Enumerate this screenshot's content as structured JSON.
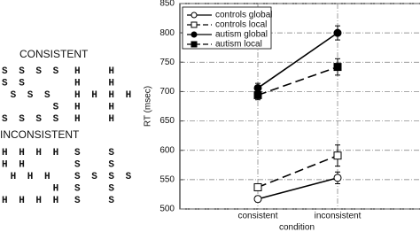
{
  "panels": [
    {
      "title": "CONSISTENT",
      "figures": [
        [
          "S S S S",
          "S S",
          " S S S",
          "      S",
          "S S S S"
        ],
        [
          "H   H",
          "H   H",
          "H H H H",
          "H   H",
          "H   H"
        ]
      ]
    },
    {
      "title": "INCONSISTENT",
      "figures": [
        [
          "H H H H",
          "H H",
          " H H H",
          "      H",
          "H H H H"
        ],
        [
          "S   S",
          "S   S",
          "S S S S",
          "S   S",
          "S   S"
        ]
      ]
    }
  ],
  "chart_data": {
    "type": "line",
    "categories": [
      "consistent",
      "inconsistent"
    ],
    "xlabel": "condition",
    "ylabel": "RT (msec)",
    "ylim": [
      500,
      850
    ],
    "yticks": [
      500,
      550,
      600,
      650,
      700,
      750,
      800,
      850
    ],
    "grid": true,
    "legend": "top-left",
    "series": [
      {
        "name": "controls global",
        "color": "#000000",
        "marker": "circle",
        "filled": false,
        "dashed": false,
        "values": [
          517,
          553
        ],
        "errors": [
          5,
          10
        ]
      },
      {
        "name": "controls local",
        "color": "#000000",
        "marker": "square",
        "filled": false,
        "dashed": true,
        "values": [
          537,
          591
        ],
        "errors": [
          5,
          18
        ]
      },
      {
        "name": "autism global",
        "color": "#000000",
        "marker": "circle",
        "filled": true,
        "dashed": false,
        "values": [
          706,
          800
        ],
        "errors": [
          8,
          12
        ]
      },
      {
        "name": "autism local",
        "color": "#000000",
        "marker": "square",
        "filled": true,
        "dashed": true,
        "values": [
          694,
          742
        ],
        "errors": [
          8,
          14
        ]
      }
    ]
  }
}
